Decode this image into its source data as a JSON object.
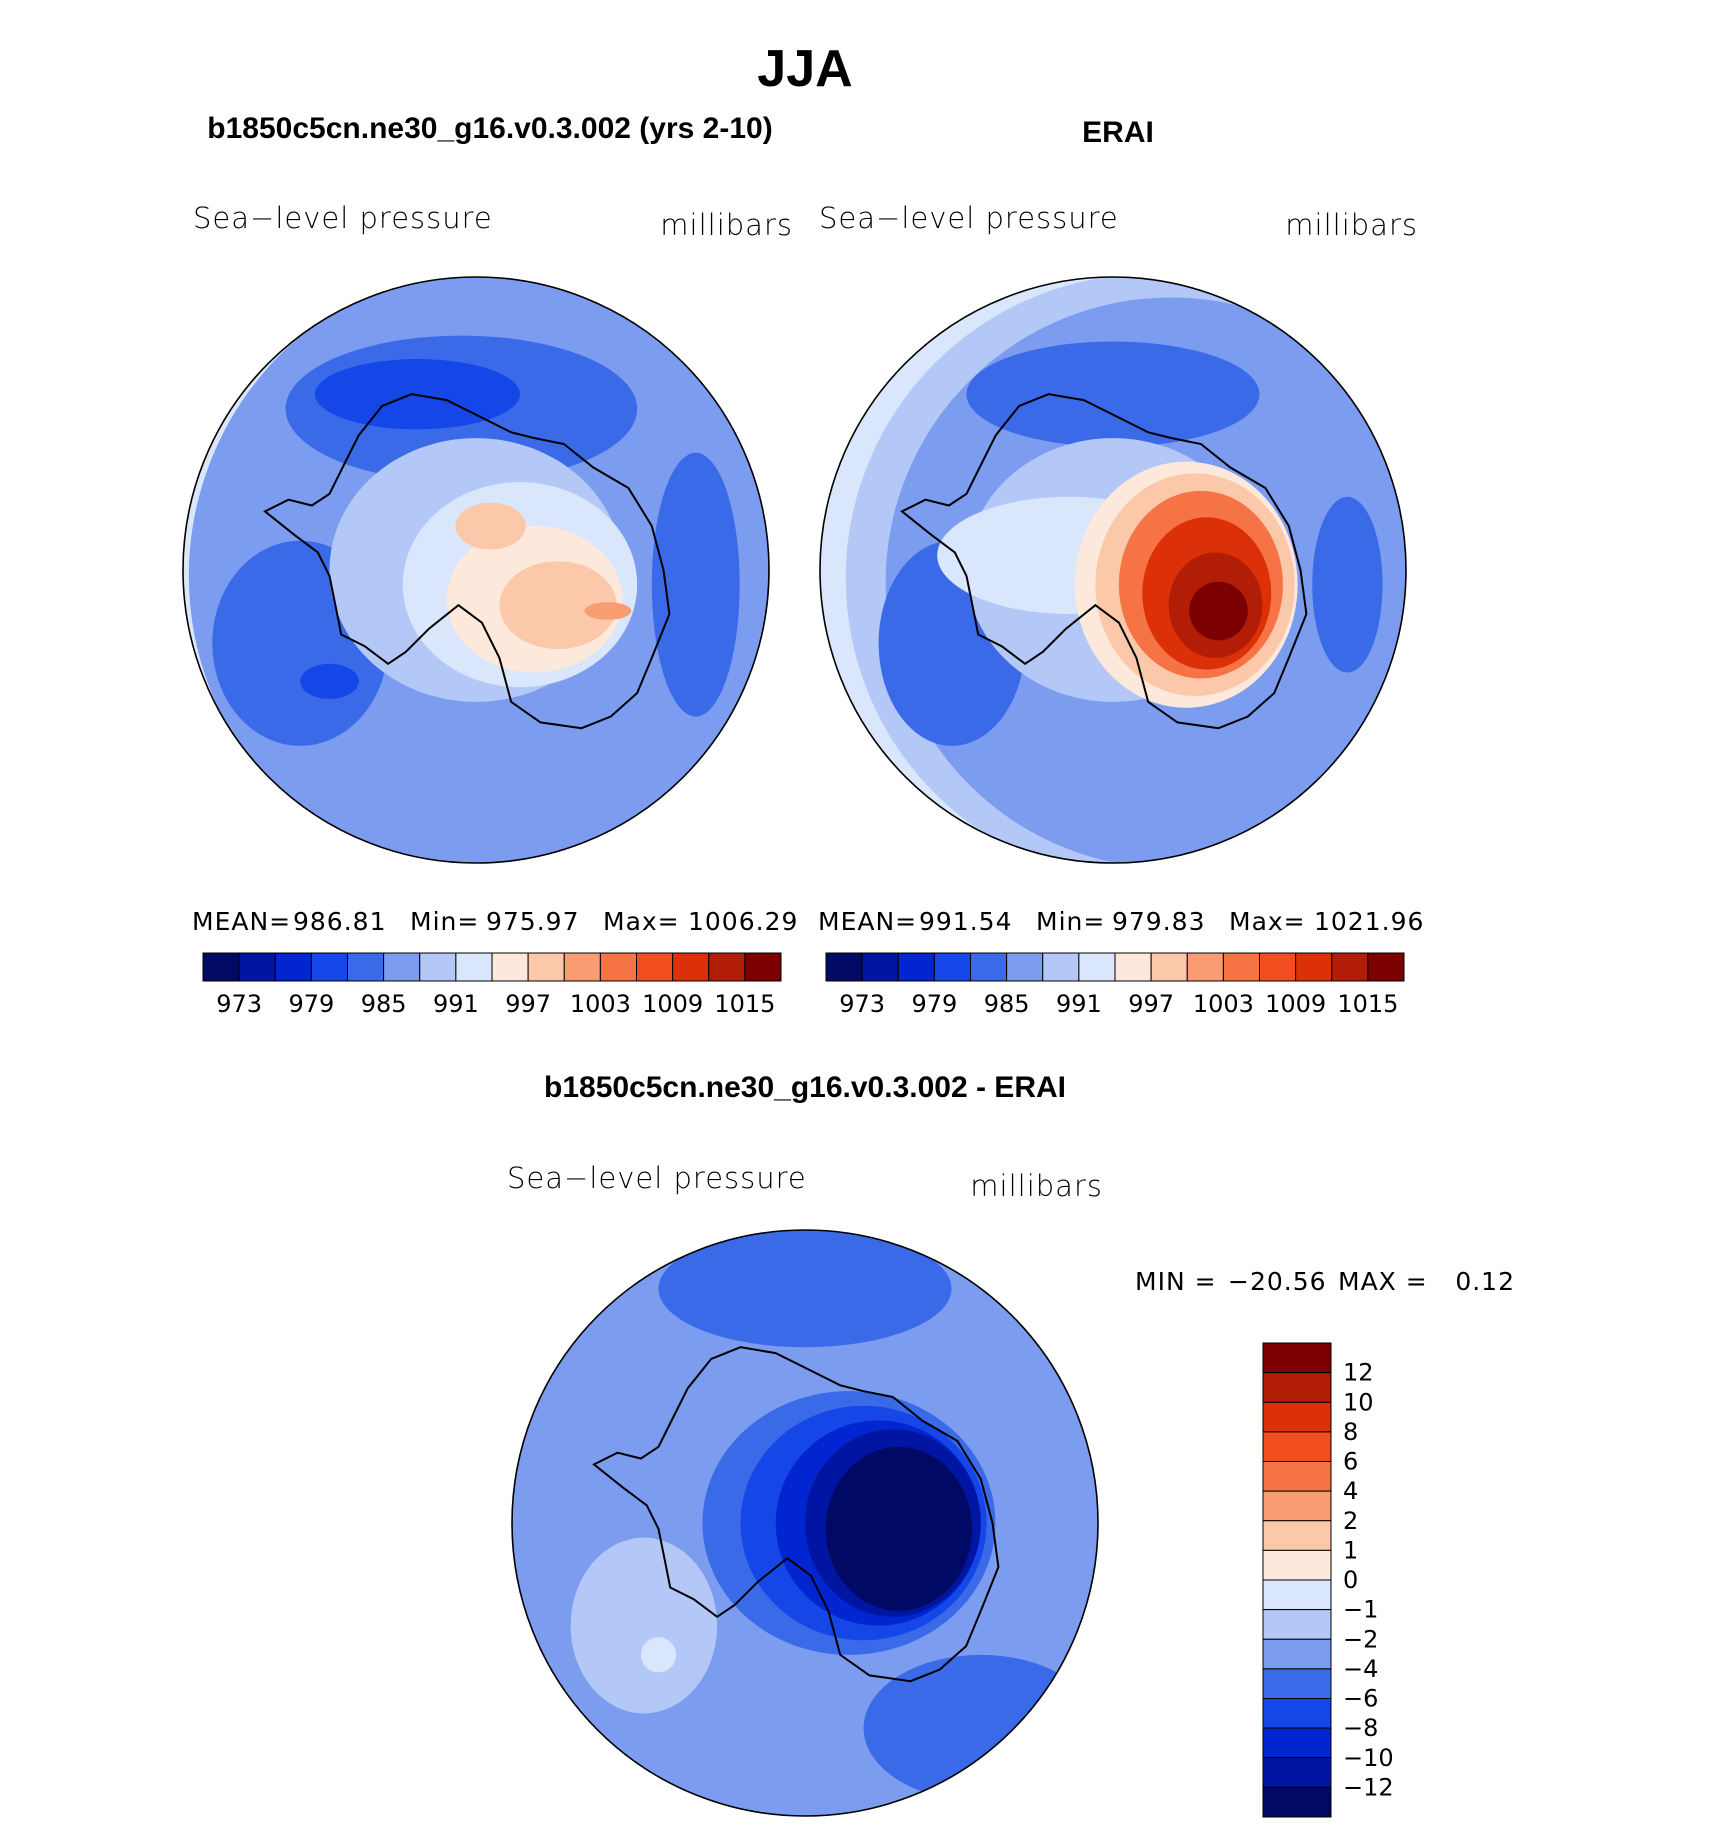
{
  "title": "JJA",
  "colors": {
    "seq": [
      "#000a64",
      "#0016a3",
      "#0025d1",
      "#1546e8",
      "#3a6ae8",
      "#7b9cef",
      "#b3c8f7",
      "#dae6fb",
      "#fde9dc",
      "#fbc8aa",
      "#f99c71",
      "#f57345",
      "#f24e1f",
      "#db3008",
      "#b11d06",
      "#7d0000"
    ],
    "diff": [
      "#000a64",
      "#0016a3",
      "#0025d1",
      "#1546e8",
      "#3a6ae8",
      "#7b9cef",
      "#b3c8f7",
      "#dae6fb",
      "#fde9dc",
      "#fbc8aa",
      "#f99c71",
      "#f57345",
      "#f24e1f",
      "#db3008",
      "#b11d06",
      "#7d0000"
    ]
  },
  "chart_data": [
    {
      "type": "heatmap",
      "projection": "south-polar stereographic",
      "title": "b1850c5cn.ne30_g16.v0.3.002 (yrs 2-10)",
      "left_label": "Sea−level pressure",
      "right_label": "millibars",
      "stats": {
        "mean_label": "MEAN=",
        "mean": "986.81",
        "min_label": "Min=",
        "min": "975.97",
        "max_label": "Max=",
        "max": "1006.29"
      },
      "levels": [
        970,
        973,
        976,
        979,
        982,
        985,
        988,
        991,
        994,
        997,
        1000,
        1003,
        1006,
        1009,
        1012,
        1015
      ],
      "tick_labels": [
        "973",
        "979",
        "985",
        "991",
        "997",
        "1003",
        "1009",
        "1015"
      ],
      "field": {
        "background": 5,
        "bands": [
          {
            "level": 7,
            "ring": 0.9
          },
          {
            "level": 8,
            "ring": 0.97
          }
        ],
        "blobs": [
          {
            "level": 4,
            "cx": -0.05,
            "cy": -0.55,
            "rx": 0.6,
            "ry": 0.25
          },
          {
            "level": 4,
            "cx": 0.75,
            "cy": 0.05,
            "rx": 0.15,
            "ry": 0.45
          },
          {
            "level": 4,
            "cx": -0.6,
            "cy": 0.25,
            "rx": 0.3,
            "ry": 0.35
          },
          {
            "level": 3,
            "cx": -0.2,
            "cy": -0.6,
            "rx": 0.35,
            "ry": 0.12
          },
          {
            "level": 3,
            "cx": -0.5,
            "cy": 0.38,
            "rx": 0.1,
            "ry": 0.06
          },
          {
            "level": 6,
            "cx": 0.0,
            "cy": 0.0,
            "rx": 0.5,
            "ry": 0.45
          },
          {
            "level": 7,
            "cx": 0.15,
            "cy": 0.05,
            "rx": 0.4,
            "ry": 0.35
          },
          {
            "level": 8,
            "cx": 0.2,
            "cy": 0.1,
            "rx": 0.3,
            "ry": 0.25
          },
          {
            "level": 9,
            "cx": 0.28,
            "cy": 0.12,
            "rx": 0.2,
            "ry": 0.15
          },
          {
            "level": 9,
            "cx": 0.05,
            "cy": -0.15,
            "rx": 0.12,
            "ry": 0.08
          },
          {
            "level": 10,
            "cx": 0.45,
            "cy": 0.14,
            "rx": 0.08,
            "ry": 0.03
          }
        ]
      }
    },
    {
      "type": "heatmap",
      "projection": "south-polar stereographic",
      "title": "ERAI",
      "left_label": "Sea−level pressure",
      "right_label": "millibars",
      "stats": {
        "mean_label": "MEAN=",
        "mean": "991.54",
        "min_label": "Min=",
        "min": "979.83",
        "max_label": "Max=",
        "max": "1021.96"
      },
      "levels": [
        970,
        973,
        976,
        979,
        982,
        985,
        988,
        991,
        994,
        997,
        1000,
        1003,
        1006,
        1009,
        1012,
        1015
      ],
      "tick_labels": [
        "973",
        "979",
        "985",
        "991",
        "997",
        "1003",
        "1009",
        "1015"
      ],
      "field": {
        "background": 5,
        "bands": [
          {
            "level": 6,
            "ring": 0.78
          },
          {
            "level": 7,
            "ring": 0.86
          },
          {
            "level": 8,
            "ring": 0.92
          },
          {
            "level": 9,
            "ring": 0.97
          }
        ],
        "blobs": [
          {
            "level": 4,
            "cx": 0.0,
            "cy": -0.6,
            "rx": 0.5,
            "ry": 0.18
          },
          {
            "level": 4,
            "cx": 0.8,
            "cy": 0.05,
            "rx": 0.12,
            "ry": 0.3
          },
          {
            "level": 4,
            "cx": -0.55,
            "cy": 0.25,
            "rx": 0.25,
            "ry": 0.35
          },
          {
            "level": 6,
            "cx": 0.0,
            "cy": 0.0,
            "rx": 0.5,
            "ry": 0.45
          },
          {
            "level": 7,
            "cx": -0.15,
            "cy": -0.05,
            "rx": 0.45,
            "ry": 0.2
          },
          {
            "level": 8,
            "cx": 0.25,
            "cy": 0.05,
            "rx": 0.38,
            "ry": 0.42
          },
          {
            "level": 9,
            "cx": 0.28,
            "cy": 0.05,
            "rx": 0.34,
            "ry": 0.38
          },
          {
            "level": 11,
            "cx": 0.3,
            "cy": 0.05,
            "rx": 0.28,
            "ry": 0.32
          },
          {
            "level": 13,
            "cx": 0.32,
            "cy": 0.08,
            "rx": 0.22,
            "ry": 0.26
          },
          {
            "level": 14,
            "cx": 0.35,
            "cy": 0.12,
            "rx": 0.16,
            "ry": 0.18
          },
          {
            "level": 15,
            "cx": 0.36,
            "cy": 0.14,
            "rx": 0.1,
            "ry": 0.1
          }
        ]
      }
    },
    {
      "type": "heatmap",
      "projection": "south-polar stereographic",
      "title": "b1850c5cn.ne30_g16.v0.3.002 - ERAI",
      "left_label": "Sea−level pressure",
      "right_label": "millibars",
      "stats": {
        "min_label": "MIN =",
        "min": "−20.56",
        "max_label": "MAX =",
        "max": "0.12"
      },
      "levels": [
        -12,
        -10,
        -8,
        -6,
        -4,
        -2,
        -1,
        0,
        1,
        2,
        4,
        6,
        8,
        10,
        12
      ],
      "tick_labels": [
        "12",
        "10",
        "8",
        "6",
        "4",
        "2",
        "1",
        "0",
        "−1",
        "−2",
        "−4",
        "−6",
        "−8",
        "−10",
        "−12"
      ],
      "field": {
        "background": 5,
        "bands": [],
        "blobs": [
          {
            "level": 4,
            "cx": 0.0,
            "cy": -0.8,
            "rx": 0.5,
            "ry": 0.2
          },
          {
            "level": 4,
            "cx": 0.6,
            "cy": 0.7,
            "rx": 0.4,
            "ry": 0.25
          },
          {
            "level": 6,
            "cx": -0.55,
            "cy": 0.35,
            "rx": 0.25,
            "ry": 0.3
          },
          {
            "level": 7,
            "cx": -0.5,
            "cy": 0.45,
            "rx": 0.06,
            "ry": 0.06
          },
          {
            "level": 4,
            "cx": 0.15,
            "cy": 0.0,
            "rx": 0.5,
            "ry": 0.45
          },
          {
            "level": 3,
            "cx": 0.2,
            "cy": 0.0,
            "rx": 0.42,
            "ry": 0.4
          },
          {
            "level": 2,
            "cx": 0.25,
            "cy": 0.0,
            "rx": 0.35,
            "ry": 0.35
          },
          {
            "level": 1,
            "cx": 0.3,
            "cy": 0.0,
            "rx": 0.3,
            "ry": 0.32
          },
          {
            "level": 0,
            "cx": 0.32,
            "cy": 0.02,
            "rx": 0.25,
            "ry": 0.28
          }
        ]
      }
    }
  ]
}
